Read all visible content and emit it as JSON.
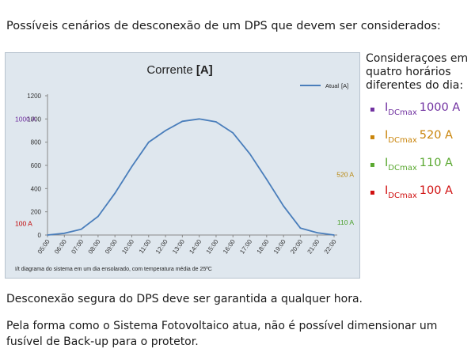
{
  "heading": "Possíveis cenários de desconexão de um DPS que devem ser considerados:",
  "chart_data": {
    "type": "line",
    "title_prefix": "Corrente ",
    "title_unit": "[A]",
    "legend": {
      "name": "Atual",
      "unit": "[A]",
      "placement": "top-right"
    },
    "categories": [
      "05:00",
      "06:00",
      "07:00",
      "08:00",
      "09:00",
      "10:00",
      "11:00",
      "12:00",
      "13:00",
      "14:00",
      "15:00",
      "16:00",
      "17:00",
      "18:00",
      "19:00",
      "20:00",
      "21:00",
      "22:00"
    ],
    "series": [
      {
        "name": "Atual",
        "color": "#4a7ebb",
        "values": [
          0,
          15,
          50,
          160,
          360,
          590,
          800,
          900,
          980,
          1000,
          975,
          880,
          700,
          480,
          250,
          60,
          20,
          0
        ]
      }
    ],
    "y_ticks": [
      "0",
      "200",
      "400",
      "600",
      "800",
      "1000",
      "1200"
    ],
    "ylim": [
      0,
      1200
    ],
    "grid": false,
    "annotations": [
      {
        "text": "1000 A",
        "y": 1000,
        "side": "left",
        "color": "#7030a0"
      },
      {
        "text": "100 A",
        "y": 100,
        "side": "left",
        "color": "#c00000"
      },
      {
        "text": "520 A",
        "y": 520,
        "side": "right",
        "color": "#b8860b"
      },
      {
        "text": "110 A",
        "y": 110,
        "side": "right",
        "color": "#4aa02c"
      }
    ],
    "footnote": "I/t diagrama do sistema em um dia ensolarado, com temperatura média de 25ºC"
  },
  "legend_panel": {
    "title": "Consideraçoes em quatro horários diferentes do dia:",
    "items": [
      {
        "bullet": "▪",
        "symbol": "I",
        "sub": "DCmax",
        "value": "1000 A",
        "color": "#7030a0"
      },
      {
        "bullet": "▪",
        "symbol": "I",
        "sub": "DCmax",
        "value": "520 A",
        "color": "#c9840a"
      },
      {
        "bullet": "▪",
        "symbol": "I",
        "sub": "DCmax",
        "value": "110 A",
        "color": "#5aa830"
      },
      {
        "bullet": "▪",
        "symbol": "I",
        "sub": "DCmax",
        "value": "100 A",
        "color": "#d01010"
      }
    ]
  },
  "text1": "Desconexão segura do DPS deve ser garantida a qualquer hora.",
  "text2": "Pela forma como o Sistema Fotovoltaico atua, não é possível dimensionar um fusível de Back-up para o protetor."
}
